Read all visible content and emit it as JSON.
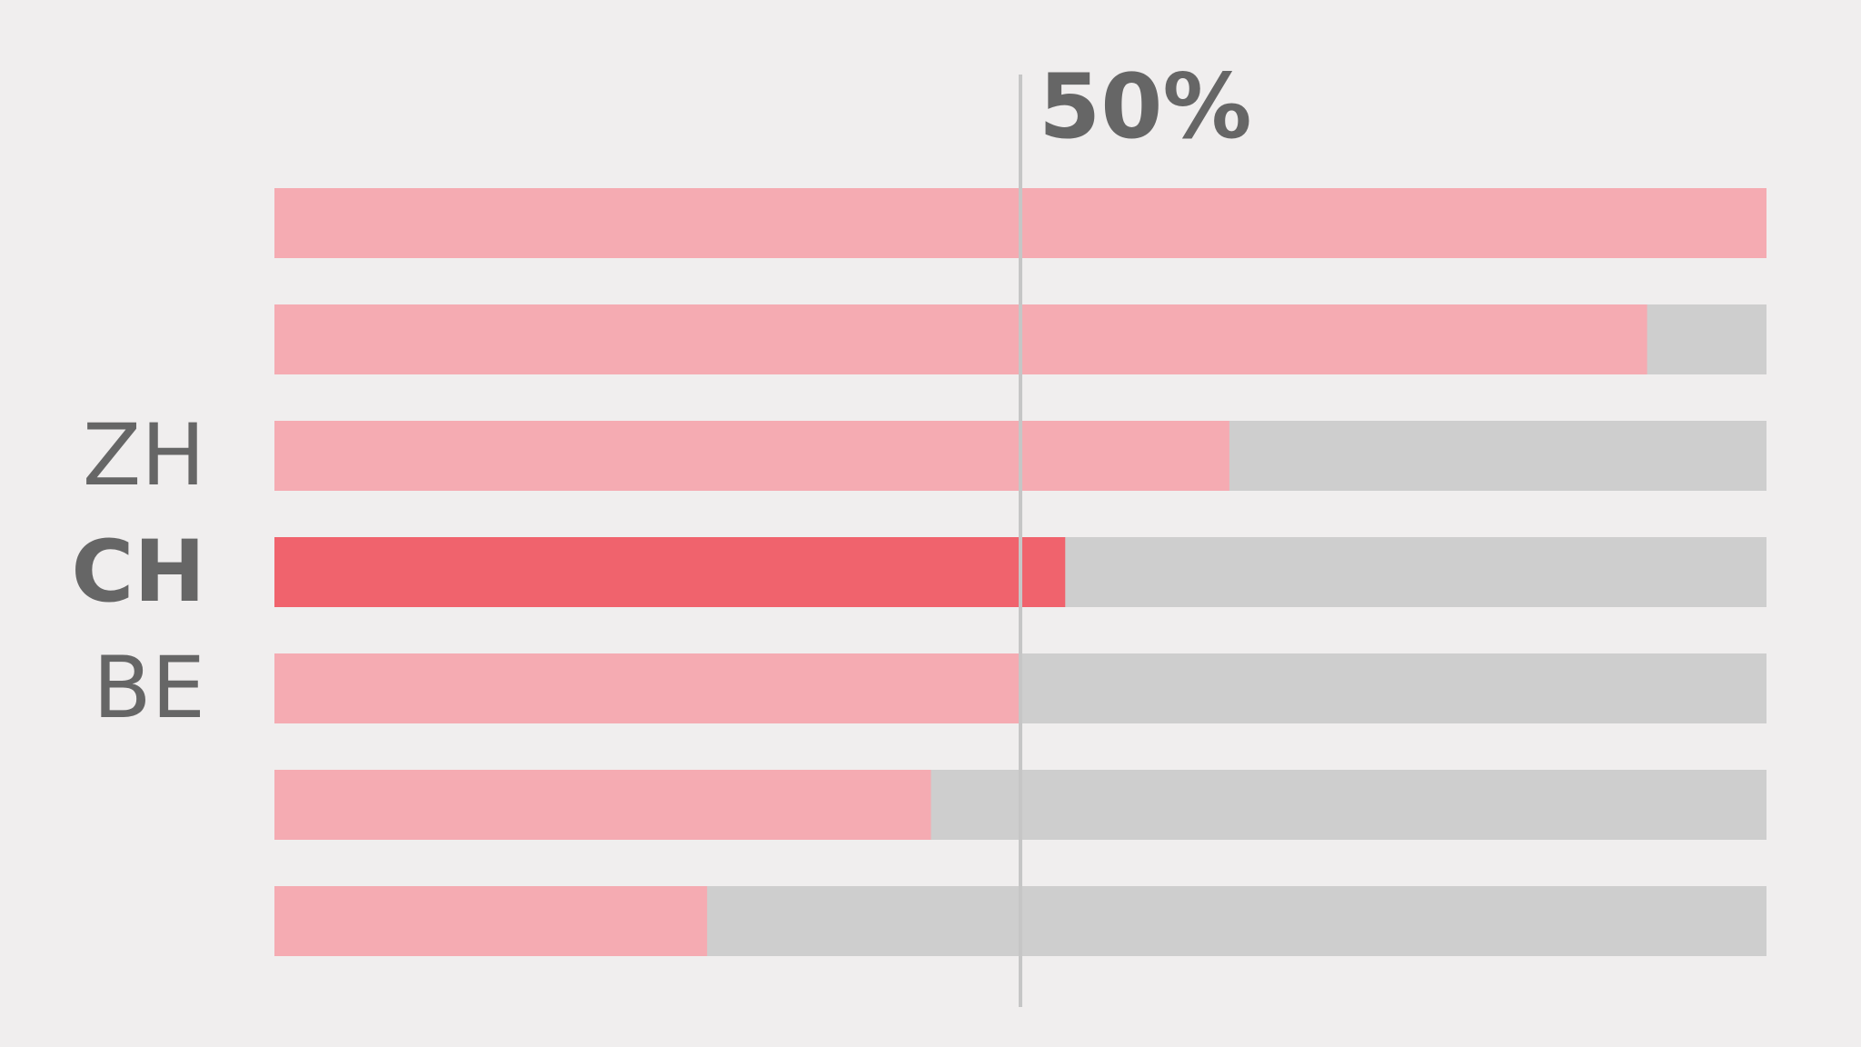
{
  "chart_data": {
    "type": "bar",
    "orientation": "horizontal",
    "stacked_to": 100,
    "categories": [
      "",
      "",
      "ZH",
      "CH",
      "BE",
      "",
      ""
    ],
    "values": [
      100,
      92,
      64,
      53,
      50,
      44,
      29
    ],
    "highlight_category": "CH",
    "xlim": [
      0,
      100
    ],
    "reference_line": {
      "value": 50,
      "label": "50%"
    },
    "grid": false,
    "legend": "none",
    "colors": {
      "bar": "#f5abb2",
      "highlight": "#f0636d",
      "remainder": "#cecece",
      "reference_line": "#c6c6c6",
      "text": "#666666",
      "background": "#f0eeee"
    }
  }
}
